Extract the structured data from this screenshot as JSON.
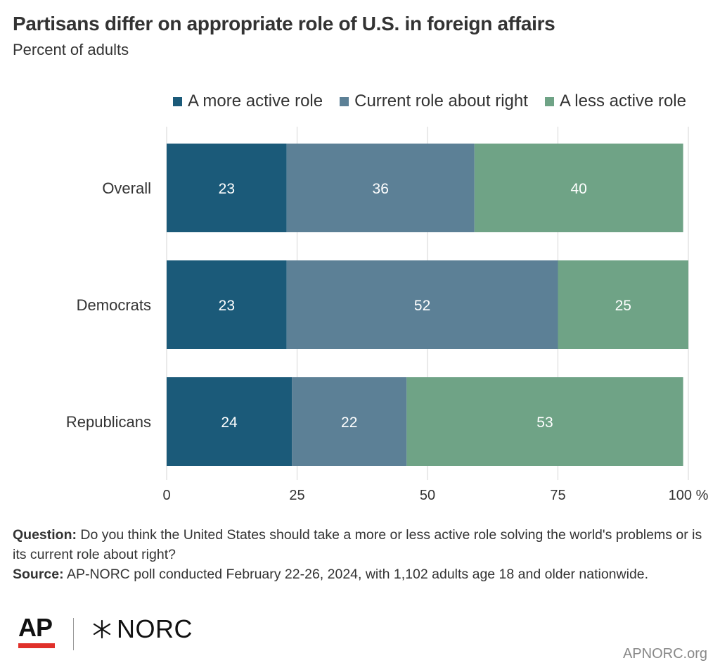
{
  "chart_data": {
    "type": "bar",
    "orientation": "horizontal",
    "stacked": true,
    "title": "Partisans differ on appropriate role of U.S. in foreign affairs",
    "subtitle": "Percent of adults",
    "categories": [
      "Overall",
      "Democrats",
      "Republicans"
    ],
    "series": [
      {
        "name": "A more active role",
        "color": "#1b5a79",
        "values": [
          23,
          23,
          24
        ]
      },
      {
        "name": "Current role about right",
        "color": "#5c8096",
        "values": [
          36,
          52,
          22
        ]
      },
      {
        "name": "A less active role",
        "color": "#6fa386",
        "values": [
          40,
          25,
          53
        ]
      }
    ],
    "xlim": [
      0,
      100
    ],
    "xticks": [
      "0",
      "25",
      "50",
      "75",
      "100"
    ],
    "xtick_suffix": "%",
    "grid": true,
    "legend_position": "top-right"
  },
  "notes": {
    "question_label": "Question:",
    "question_text": "Do you think the United States should take a more or less active role solving the world's problems or is its current role about right?",
    "source_label": "Source:",
    "source_text": "AP-NORC poll conducted February 22-26, 2024, with 1,102 adults age 18 and older nationwide."
  },
  "logos": {
    "ap": "AP",
    "norc": "NORC",
    "site": "APNORC.org"
  },
  "colors": {
    "grid": "#d6d6d6",
    "axis_text": "#333333",
    "bar_text": "#ffffff"
  }
}
